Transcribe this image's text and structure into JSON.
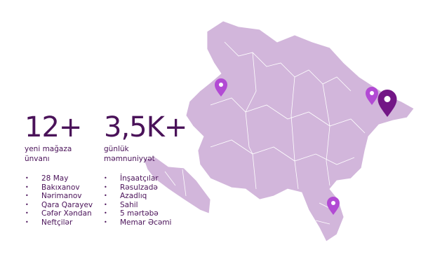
{
  "colors": {
    "text": "#4a1259",
    "map_fill": "#d2b6db",
    "map_border": "#ffffff",
    "pin_light": "#b24ad4",
    "pin_dark": "#731686"
  },
  "stats": [
    {
      "value": "12+",
      "label_line1": "yeni mağaza",
      "label_line2": "ünvanı"
    },
    {
      "value": "3,5K+",
      "label_line1": "günlük",
      "label_line2": "məmnuniyyət"
    }
  ],
  "list_left": [
    "28 May",
    "Bakıxanov",
    "Nərimanov",
    "Qara Qarayev",
    "Cəfər Xəndan",
    "Neftçilər"
  ],
  "list_right": [
    "İnşaatçılar",
    "Rəsulzadə",
    "Azadlıq",
    "Sahil",
    "5 mərtəbə",
    "Memar Əcəmi"
  ],
  "pins": [
    {
      "icon": "map-pin-icon",
      "color": "light"
    },
    {
      "icon": "map-pin-icon",
      "color": "light"
    },
    {
      "icon": "map-pin-icon",
      "color": "dark"
    },
    {
      "icon": "map-pin-icon",
      "color": "light"
    }
  ]
}
